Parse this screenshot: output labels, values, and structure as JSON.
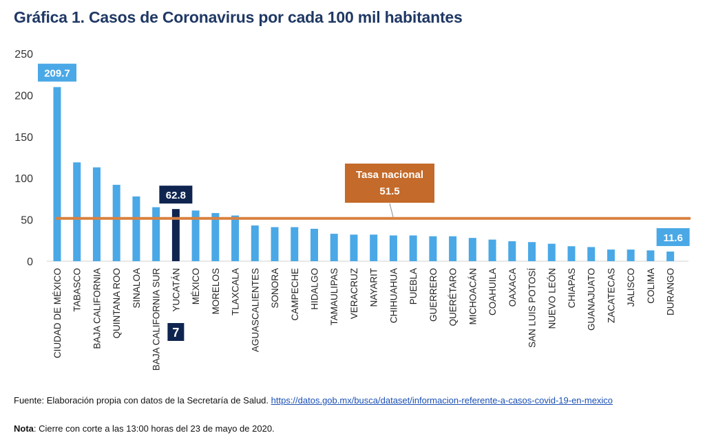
{
  "title": "Gráfica 1. Casos de Coronavirus por cada 100 mil habitantes",
  "chart_data": {
    "type": "bar",
    "categories": [
      "CIUDAD DE MÉXICO",
      "TABASCO",
      "BAJA CALIFORNIA",
      "QUINTANA ROO",
      "SINALOA",
      "BAJA CALIFORNIA SUR",
      "YUCATÁN",
      "MÉXICO",
      "MORELOS",
      "TLAXCALA",
      "AGUASCALIENTES",
      "SONORA",
      "CAMPECHE",
      "HIDALGO",
      "TAMAULIPAS",
      "VERACRUZ",
      "NAYARIT",
      "CHIHUAHUA",
      "PUEBLA",
      "GUERRERO",
      "QUERÉTARO",
      "MICHOACÁN",
      "COAHUILA",
      "OAXACA",
      "SAN LUIS POTOSÍ",
      "NUEVO LEÓN",
      "CHIAPAS",
      "GUANAJUATO",
      "ZACATECAS",
      "JALISCO",
      "COLIMA",
      "DURANGO"
    ],
    "values": [
      209.7,
      119,
      113,
      92,
      78,
      65,
      62.8,
      61,
      58,
      55,
      43,
      41,
      41,
      39,
      33,
      32,
      32,
      31,
      31,
      30,
      30,
      28,
      26,
      24,
      23,
      21,
      18,
      17,
      14,
      14,
      13,
      11.6
    ],
    "ylim": [
      0,
      250
    ],
    "yticks": [
      0,
      50,
      100,
      150,
      200,
      250
    ],
    "highlight_index": 6,
    "highlight_rank": "7",
    "labels": [
      {
        "index": 0,
        "text": "209.7"
      },
      {
        "index": 6,
        "text": "62.8"
      },
      {
        "index": 31,
        "text": "11.6"
      }
    ],
    "reference_line": {
      "value": 51.5,
      "label_line1": "Tasa nacional",
      "label_line2": "51.5"
    },
    "colors": {
      "bar": "#4aa8e6",
      "highlight": "#0f2550",
      "line": "#d9813f",
      "label_box": "#c46a2a",
      "axis_text": "#333333"
    }
  },
  "footer": {
    "source_prefix": "Fuente: Elaboración propia con datos de la Secretaría de Salud. ",
    "source_link": "https://datos.gob.mx/busca/dataset/informacion-referente-a-casos-covid-19-en-mexico",
    "note_label": "Nota",
    "note_text": ": Cierre con corte a las 13:00 horas del 23 de mayo de 2020."
  }
}
